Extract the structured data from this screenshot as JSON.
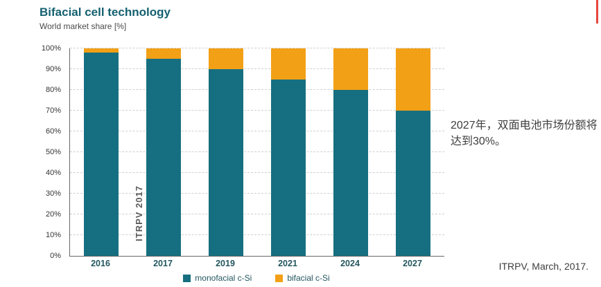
{
  "title": "Bifacial cell technology",
  "subtitle": "World market share [%]",
  "watermark": "ITRPV 2017",
  "annotation": "2027年，双面电池市场份额将达到30%。",
  "source": "ITRPV, March, 2017.",
  "colors": {
    "monofacial": "#166f80",
    "bifacial": "#f2a016",
    "title_teal": "#14606f",
    "red_edge_mark": "#e8453c"
  },
  "chart_data": {
    "type": "bar",
    "stacked": true,
    "title": "Bifacial cell technology",
    "subtitle": "World market share [%]",
    "categories": [
      "2016",
      "2017",
      "2019",
      "2021",
      "2024",
      "2027"
    ],
    "series": [
      {
        "name": "monofacial c-Si",
        "color": "#166f80",
        "values": [
          98,
          95,
          90,
          85,
          80,
          70
        ]
      },
      {
        "name": "bifacial c-Si",
        "color": "#f2a016",
        "values": [
          2,
          5,
          10,
          15,
          20,
          30
        ]
      }
    ],
    "ylabel": "",
    "ylim": [
      0,
      100
    ],
    "yticks": [
      0,
      10,
      20,
      30,
      40,
      50,
      60,
      70,
      80,
      90,
      100
    ],
    "ytick_format": "percent",
    "grid": true,
    "legend_position": "bottom"
  }
}
